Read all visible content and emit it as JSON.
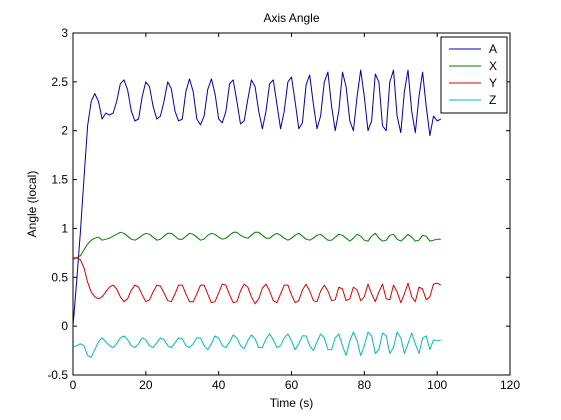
{
  "chart_data": {
    "type": "line",
    "title": "Axis Angle",
    "xlabel": "Time (s)",
    "ylabel": "Angle (local)",
    "xlim": [
      0,
      120
    ],
    "ylim": [
      -0.5,
      3
    ],
    "xticks": [
      0,
      20,
      40,
      60,
      80,
      100,
      120
    ],
    "yticks": [
      -0.5,
      0,
      0.5,
      1,
      1.5,
      2,
      2.5,
      3
    ],
    "xtick_labels": [
      "0",
      "20",
      "40",
      "60",
      "80",
      "100",
      "120"
    ],
    "ytick_labels": [
      "-0.5",
      "0",
      "0.5",
      "1",
      "1.5",
      "2",
      "2.5",
      "3"
    ],
    "grid": false,
    "legend_position": "top-right",
    "series": [
      {
        "name": "A",
        "color": "#0000aa",
        "x": [
          0,
          1,
          2,
          3,
          4,
          5,
          6,
          7,
          8,
          9,
          10,
          11,
          12,
          13,
          14,
          15,
          16,
          17,
          18,
          19,
          20,
          21,
          22,
          23,
          24,
          25,
          26,
          27,
          28,
          29,
          30,
          31,
          32,
          33,
          34,
          35,
          36,
          37,
          38,
          39,
          40,
          41,
          42,
          43,
          44,
          45,
          46,
          47,
          48,
          49,
          50,
          51,
          52,
          53,
          54,
          55,
          56,
          57,
          58,
          59,
          60,
          61,
          62,
          63,
          64,
          65,
          66,
          67,
          68,
          69,
          70,
          71,
          72,
          73,
          74,
          75,
          76,
          77,
          78,
          79,
          80,
          81,
          82,
          83,
          84,
          85,
          86,
          87,
          88,
          89,
          90,
          91,
          92,
          93,
          94,
          95,
          96,
          97,
          98,
          99,
          100,
          101
        ],
        "values": [
          0.0,
          0.45,
          0.95,
          1.5,
          2.05,
          2.3,
          2.38,
          2.3,
          2.12,
          2.18,
          2.16,
          2.18,
          2.3,
          2.48,
          2.52,
          2.42,
          2.2,
          2.1,
          2.12,
          2.35,
          2.5,
          2.45,
          2.25,
          2.12,
          2.15,
          2.3,
          2.5,
          2.43,
          2.2,
          2.1,
          2.12,
          2.4,
          2.53,
          2.4,
          2.12,
          2.06,
          2.15,
          2.42,
          2.53,
          2.38,
          2.12,
          2.08,
          2.2,
          2.48,
          2.52,
          2.3,
          2.07,
          2.1,
          2.32,
          2.52,
          2.45,
          2.2,
          2.02,
          2.2,
          2.48,
          2.52,
          2.27,
          2.02,
          2.2,
          2.5,
          2.55,
          2.3,
          2.02,
          2.08,
          2.47,
          2.57,
          2.27,
          2.02,
          2.15,
          2.5,
          2.6,
          2.25,
          2.0,
          2.2,
          2.6,
          2.45,
          2.1,
          2.0,
          2.35,
          2.62,
          2.35,
          2.0,
          2.1,
          2.58,
          2.5,
          2.05,
          2.0,
          2.5,
          2.62,
          2.15,
          1.98,
          2.4,
          2.62,
          2.2,
          1.98,
          2.35,
          2.6,
          2.25,
          1.95,
          2.15,
          2.1,
          2.12
        ]
      },
      {
        "name": "X",
        "color": "#008000",
        "x": [
          0,
          1,
          2,
          3,
          4,
          5,
          6,
          7,
          8,
          9,
          10,
          11,
          12,
          13,
          14,
          15,
          16,
          17,
          18,
          19,
          20,
          21,
          22,
          23,
          24,
          25,
          26,
          27,
          28,
          29,
          30,
          31,
          32,
          33,
          34,
          35,
          36,
          37,
          38,
          39,
          40,
          41,
          42,
          43,
          44,
          45,
          46,
          47,
          48,
          49,
          50,
          51,
          52,
          53,
          54,
          55,
          56,
          57,
          58,
          59,
          60,
          61,
          62,
          63,
          64,
          65,
          66,
          67,
          68,
          69,
          70,
          71,
          72,
          73,
          74,
          75,
          76,
          77,
          78,
          79,
          80,
          81,
          82,
          83,
          84,
          85,
          86,
          87,
          88,
          89,
          90,
          91,
          92,
          93,
          94,
          95,
          96,
          97,
          98,
          99,
          100,
          101
        ],
        "values": [
          0.7,
          0.7,
          0.72,
          0.78,
          0.84,
          0.88,
          0.9,
          0.91,
          0.88,
          0.89,
          0.9,
          0.92,
          0.94,
          0.96,
          0.95,
          0.92,
          0.89,
          0.88,
          0.9,
          0.93,
          0.95,
          0.94,
          0.91,
          0.88,
          0.89,
          0.92,
          0.95,
          0.95,
          0.92,
          0.89,
          0.89,
          0.92,
          0.95,
          0.94,
          0.91,
          0.88,
          0.89,
          0.93,
          0.95,
          0.94,
          0.91,
          0.89,
          0.9,
          0.93,
          0.96,
          0.96,
          0.93,
          0.91,
          0.9,
          0.93,
          0.96,
          0.96,
          0.93,
          0.9,
          0.9,
          0.93,
          0.95,
          0.93,
          0.9,
          0.88,
          0.9,
          0.93,
          0.95,
          0.92,
          0.89,
          0.88,
          0.9,
          0.93,
          0.94,
          0.91,
          0.88,
          0.88,
          0.91,
          0.94,
          0.93,
          0.9,
          0.87,
          0.9,
          0.94,
          0.92,
          0.88,
          0.87,
          0.92,
          0.95,
          0.9,
          0.87,
          0.88,
          0.93,
          0.94,
          0.89,
          0.87,
          0.9,
          0.94,
          0.91,
          0.87,
          0.88,
          0.93,
          0.92,
          0.87,
          0.88,
          0.89,
          0.89
        ]
      },
      {
        "name": "Y",
        "color": "#dd0000",
        "x": [
          0,
          1,
          2,
          3,
          4,
          5,
          6,
          7,
          8,
          9,
          10,
          11,
          12,
          13,
          14,
          15,
          16,
          17,
          18,
          19,
          20,
          21,
          22,
          23,
          24,
          25,
          26,
          27,
          28,
          29,
          30,
          31,
          32,
          33,
          34,
          35,
          36,
          37,
          38,
          39,
          40,
          41,
          42,
          43,
          44,
          45,
          46,
          47,
          48,
          49,
          50,
          51,
          52,
          53,
          54,
          55,
          56,
          57,
          58,
          59,
          60,
          61,
          62,
          63,
          64,
          65,
          66,
          67,
          68,
          69,
          70,
          71,
          72,
          73,
          74,
          75,
          76,
          77,
          78,
          79,
          80,
          81,
          82,
          83,
          84,
          85,
          86,
          87,
          88,
          89,
          90,
          91,
          92,
          93,
          94,
          95,
          96,
          97,
          98,
          99,
          100,
          101
        ],
        "values": [
          0.68,
          0.7,
          0.68,
          0.6,
          0.45,
          0.35,
          0.3,
          0.28,
          0.3,
          0.35,
          0.4,
          0.42,
          0.38,
          0.3,
          0.25,
          0.28,
          0.37,
          0.42,
          0.4,
          0.32,
          0.25,
          0.27,
          0.35,
          0.42,
          0.41,
          0.34,
          0.26,
          0.25,
          0.33,
          0.42,
          0.42,
          0.33,
          0.25,
          0.25,
          0.33,
          0.42,
          0.42,
          0.33,
          0.24,
          0.25,
          0.34,
          0.43,
          0.42,
          0.32,
          0.24,
          0.25,
          0.36,
          0.43,
          0.4,
          0.3,
          0.23,
          0.28,
          0.39,
          0.43,
          0.36,
          0.26,
          0.24,
          0.33,
          0.42,
          0.42,
          0.32,
          0.24,
          0.26,
          0.37,
          0.43,
          0.36,
          0.26,
          0.25,
          0.36,
          0.42,
          0.36,
          0.26,
          0.27,
          0.4,
          0.38,
          0.26,
          0.28,
          0.4,
          0.37,
          0.26,
          0.3,
          0.43,
          0.33,
          0.25,
          0.35,
          0.43,
          0.28,
          0.27,
          0.42,
          0.35,
          0.24,
          0.33,
          0.44,
          0.3,
          0.25,
          0.4,
          0.38,
          0.27,
          0.3,
          0.43,
          0.44,
          0.42
        ]
      },
      {
        "name": "Z",
        "color": "#00bbbb",
        "x": [
          0,
          1,
          2,
          3,
          4,
          5,
          6,
          7,
          8,
          9,
          10,
          11,
          12,
          13,
          14,
          15,
          16,
          17,
          18,
          19,
          20,
          21,
          22,
          23,
          24,
          25,
          26,
          27,
          28,
          29,
          30,
          31,
          32,
          33,
          34,
          35,
          36,
          37,
          38,
          39,
          40,
          41,
          42,
          43,
          44,
          45,
          46,
          47,
          48,
          49,
          50,
          51,
          52,
          53,
          54,
          55,
          56,
          57,
          58,
          59,
          60,
          61,
          62,
          63,
          64,
          65,
          66,
          67,
          68,
          69,
          70,
          71,
          72,
          73,
          74,
          75,
          76,
          77,
          78,
          79,
          80,
          81,
          82,
          83,
          84,
          85,
          86,
          87,
          88,
          89,
          90,
          91,
          92,
          93,
          94,
          95,
          96,
          97,
          98,
          99,
          100,
          101
        ],
        "values": [
          -0.22,
          -0.2,
          -0.18,
          -0.2,
          -0.3,
          -0.32,
          -0.24,
          -0.16,
          -0.12,
          -0.16,
          -0.2,
          -0.22,
          -0.18,
          -0.12,
          -0.1,
          -0.14,
          -0.2,
          -0.22,
          -0.18,
          -0.12,
          -0.14,
          -0.2,
          -0.22,
          -0.17,
          -0.12,
          -0.14,
          -0.2,
          -0.22,
          -0.17,
          -0.12,
          -0.13,
          -0.2,
          -0.22,
          -0.18,
          -0.12,
          -0.12,
          -0.2,
          -0.24,
          -0.18,
          -0.1,
          -0.12,
          -0.2,
          -0.22,
          -0.16,
          -0.09,
          -0.12,
          -0.2,
          -0.23,
          -0.15,
          -0.09,
          -0.13,
          -0.22,
          -0.22,
          -0.13,
          -0.08,
          -0.14,
          -0.22,
          -0.2,
          -0.12,
          -0.08,
          -0.15,
          -0.24,
          -0.18,
          -0.1,
          -0.1,
          -0.2,
          -0.25,
          -0.16,
          -0.08,
          -0.12,
          -0.24,
          -0.24,
          -0.12,
          -0.08,
          -0.2,
          -0.3,
          -0.15,
          -0.06,
          -0.15,
          -0.3,
          -0.2,
          -0.06,
          -0.1,
          -0.28,
          -0.24,
          -0.07,
          -0.1,
          -0.28,
          -0.22,
          -0.06,
          -0.12,
          -0.28,
          -0.18,
          -0.07,
          -0.18,
          -0.28,
          -0.12,
          -0.1,
          -0.24,
          -0.14,
          -0.15,
          -0.14
        ]
      }
    ]
  }
}
